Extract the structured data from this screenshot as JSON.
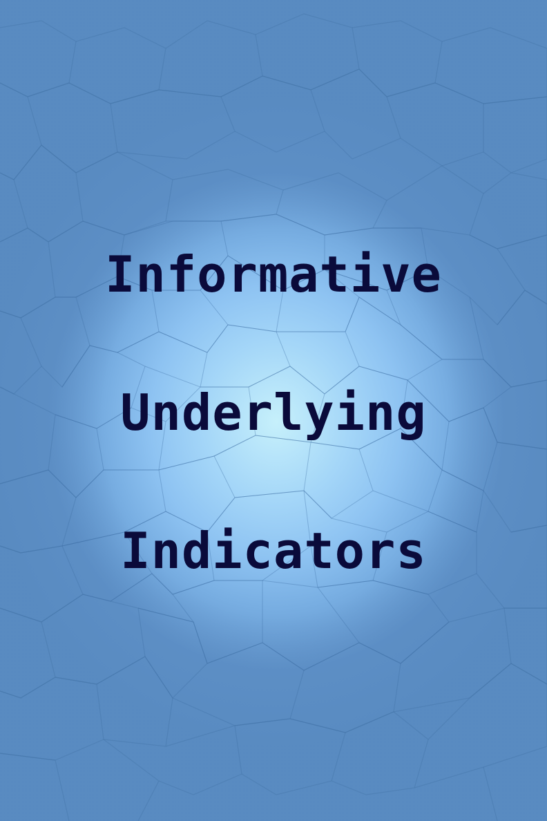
{
  "cover": {
    "title_lines": [
      "Informative",
      "Underlying",
      "Indicators"
    ]
  },
  "colors": {
    "background": "#5a8cc4",
    "glow_center": "#c6f0fb",
    "title_text": "#0a0a3a",
    "cell_lines": "#3f6fa3"
  }
}
